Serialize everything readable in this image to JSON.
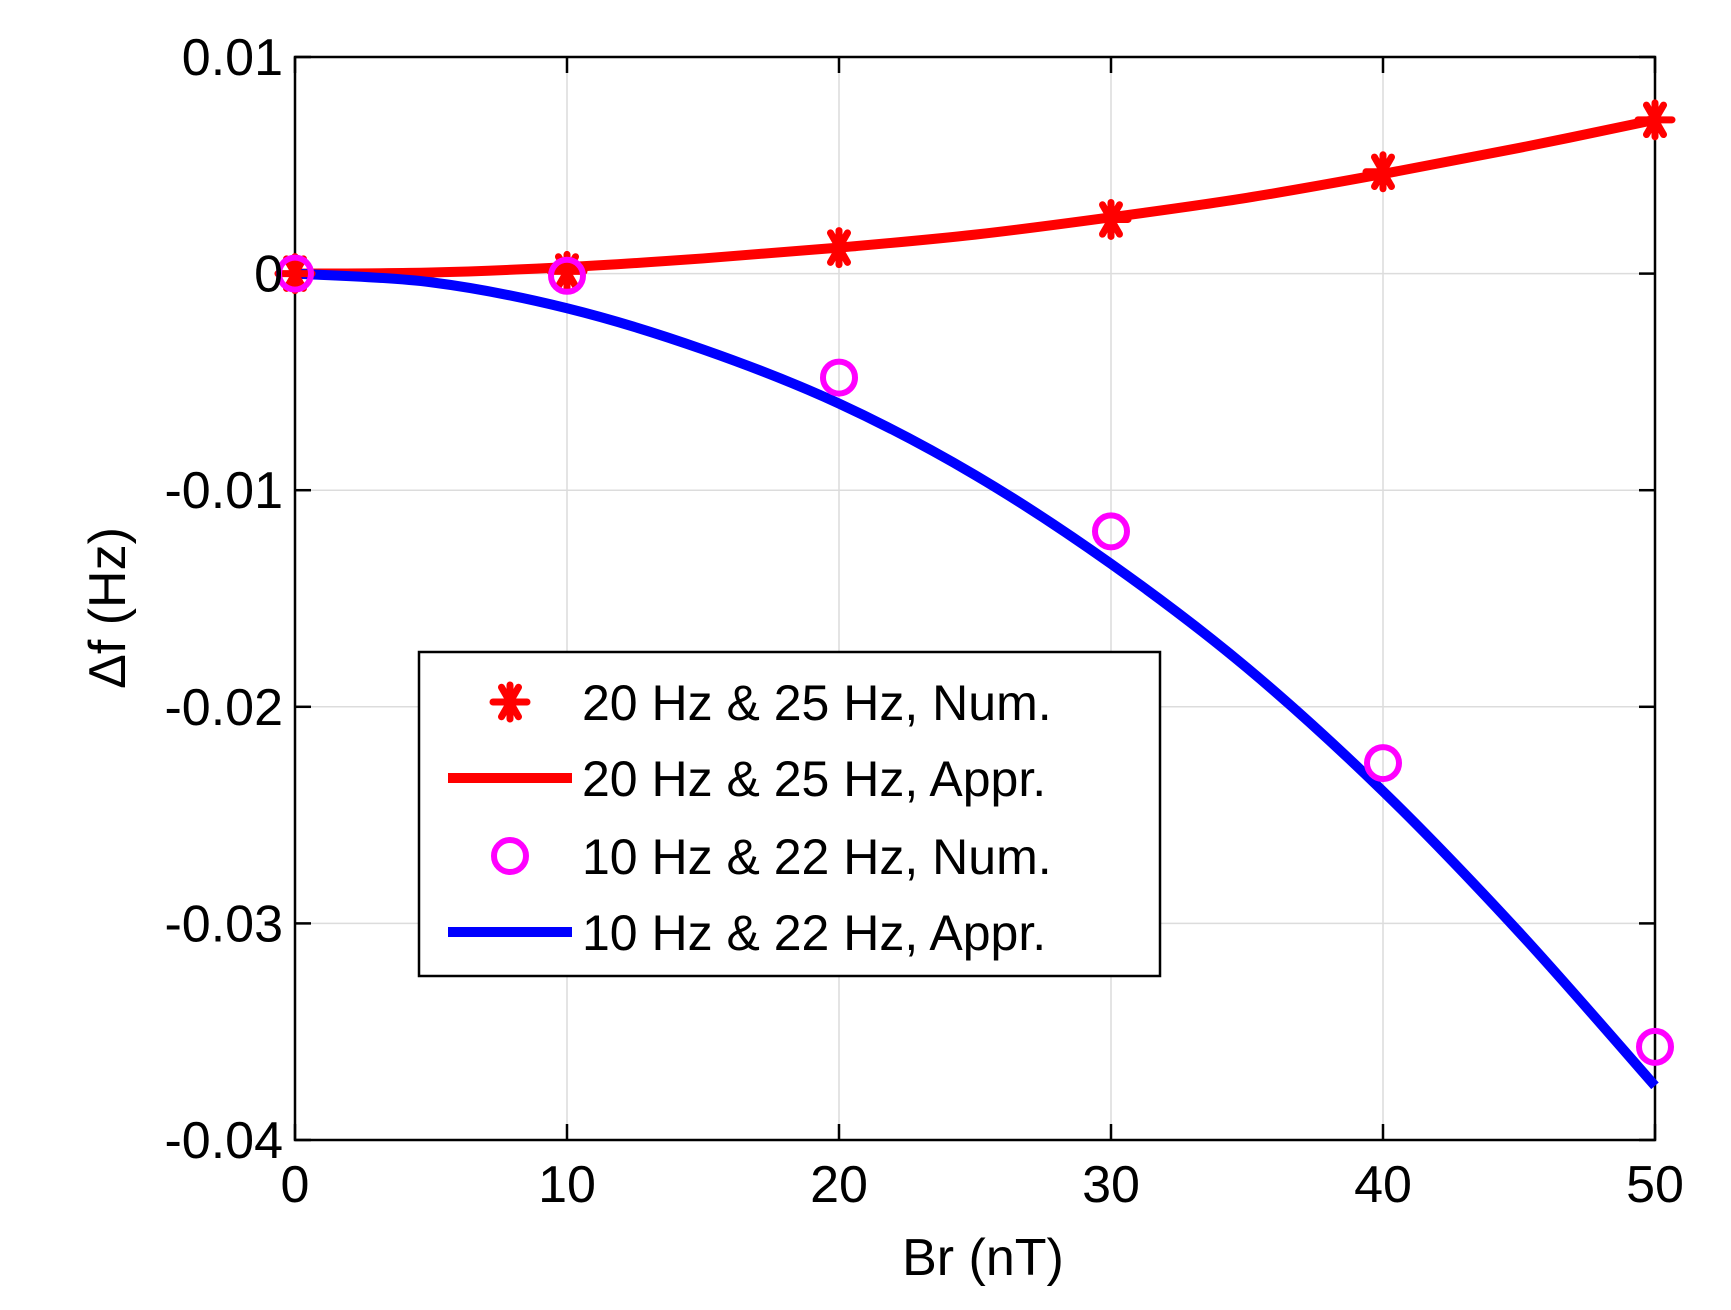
{
  "chart_data": {
    "type": "line",
    "title": "",
    "xlabel": "Br (nT)",
    "ylabel": "Δf (Hz)",
    "xlim": [
      0,
      50
    ],
    "ylim": [
      -0.04,
      0.01
    ],
    "xticks": [
      0,
      10,
      20,
      30,
      40,
      50
    ],
    "xtick_labels": [
      "0",
      "10",
      "20",
      "30",
      "40",
      "50"
    ],
    "yticks": [
      0.01,
      0,
      -0.01,
      -0.02,
      -0.03,
      -0.04
    ],
    "ytick_labels": [
      "0.01",
      "0",
      "-0.01",
      "-0.02",
      "-0.03",
      "-0.04"
    ],
    "grid": true,
    "legend_position": "center-left",
    "series": [
      {
        "name": "20 Hz & 25 Hz, Num.",
        "style": "markers",
        "marker": "asterisk",
        "color": "#ff0000",
        "x": [
          0,
          10,
          20,
          30,
          40,
          50
        ],
        "y": [
          0,
          0.0001,
          0.0012,
          0.0025,
          0.0047,
          0.0071
        ]
      },
      {
        "name": "20 Hz & 25 Hz, Appr.",
        "style": "line",
        "color": "#ff0000",
        "x": [
          0,
          5,
          10,
          15,
          20,
          25,
          30,
          35,
          40,
          45,
          50
        ],
        "y": [
          0,
          5e-05,
          0.0003,
          0.0007,
          0.0012,
          0.0018,
          0.0026,
          0.0035,
          0.0046,
          0.0058,
          0.0071
        ]
      },
      {
        "name": "10 Hz & 22 Hz, Num.",
        "style": "markers",
        "marker": "circle",
        "color": "#ff00ff",
        "x": [
          0,
          10,
          20,
          30,
          40,
          50
        ],
        "y": [
          0,
          -0.0001,
          -0.0048,
          -0.0119,
          -0.0226,
          -0.0357
        ]
      },
      {
        "name": "10 Hz & 22 Hz, Appr.",
        "style": "line",
        "color": "#0000ff",
        "x": [
          0,
          5,
          10,
          15,
          20,
          25,
          30,
          35,
          40,
          45,
          50
        ],
        "y": [
          0,
          -0.0004,
          -0.0016,
          -0.0035,
          -0.006,
          -0.0093,
          -0.0134,
          -0.0182,
          -0.0239,
          -0.0304,
          -0.0375
        ]
      }
    ]
  }
}
